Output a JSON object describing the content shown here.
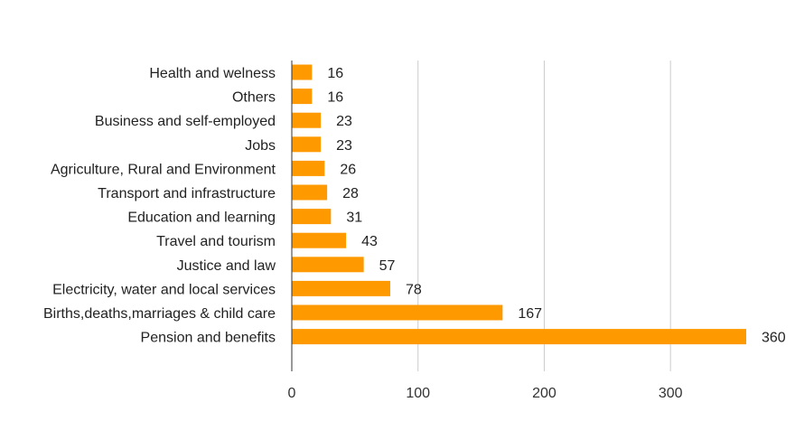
{
  "chart_data": {
    "type": "bar",
    "orientation": "horizontal",
    "title": "",
    "xlabel": "",
    "ylabel": "",
    "categories": [
      "Health and welness",
      "Others",
      "Business and self-employed",
      "Jobs",
      "Agriculture, Rural and Environment",
      "Transport and infrastructure",
      "Education and learning",
      "Travel and tourism",
      "Justice and law",
      "Electricity, water and local services",
      "Births,deaths,marriages & child care",
      "Pension and benefits"
    ],
    "values": [
      16,
      16,
      23,
      23,
      26,
      28,
      31,
      43,
      57,
      78,
      167,
      360
    ],
    "xlim": [
      0,
      360
    ],
    "xticks": [
      0,
      100,
      200,
      300
    ],
    "grid": true,
    "legend": "none",
    "bar_color": "#ff9900",
    "data_labels": true
  }
}
